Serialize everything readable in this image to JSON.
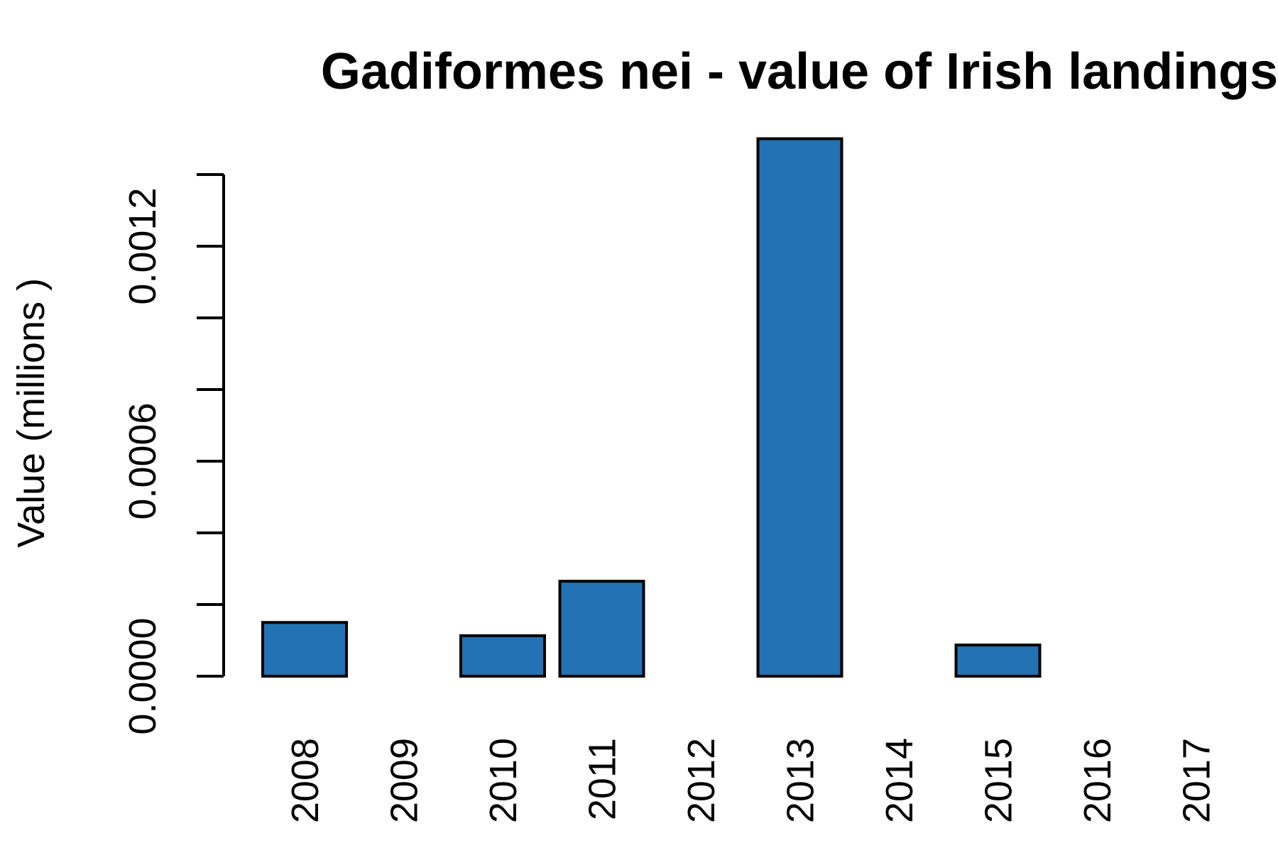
{
  "chart_data": {
    "type": "bar",
    "title": "Gadiformes nei - value of Irish landings",
    "ylabel": "Value (millions )",
    "xlabel": "",
    "categories": [
      "2008",
      "2009",
      "2010",
      "2011",
      "2012",
      "2013",
      "2014",
      "2015",
      "2016",
      "2017"
    ],
    "values": [
      0.00015,
      0,
      0.000113,
      0.000265,
      0,
      0.0015,
      0,
      8.7e-05,
      0,
      0
    ],
    "ylim": [
      0,
      0.0014
    ],
    "y_ticks": [
      0,
      0.0002,
      0.0004,
      0.0006,
      0.0008,
      0.001,
      0.0012,
      0.0014
    ],
    "y_tick_labels": [
      "0.0000",
      "",
      "",
      "0.0006",
      "",
      "",
      "0.0012",
      ""
    ],
    "bar_color": "#2372b3",
    "bar_edge_color": "#000000",
    "grid": false,
    "legend": "none"
  }
}
